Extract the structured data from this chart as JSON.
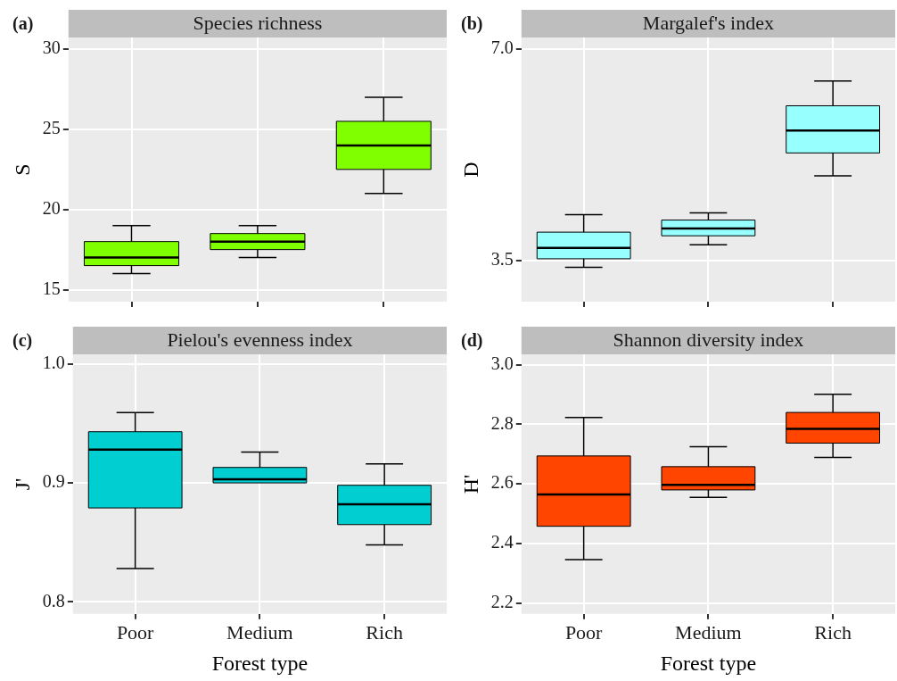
{
  "chart_data": [
    {
      "type": "box",
      "title": "Species richness",
      "ylabel": "S",
      "categories": [
        null,
        null,
        null
      ],
      "annotations": [
        "(a)"
      ],
      "grid": true,
      "tick_labels": "y",
      "ylim": [
        14.25,
        30.73
      ],
      "yticks": [
        15,
        20,
        25,
        30
      ],
      "series": [
        {
          "color": "#7fff00",
          "boxes": [
            {
              "low": 16,
              "q1": 16.5,
              "median": 17,
              "q3": 18,
              "high": 19
            },
            {
              "low": 17,
              "q1": 17.5,
              "median": 18,
              "q3": 18.5,
              "high": 19
            },
            {
              "low": 21,
              "q1": 22.5,
              "median": 24,
              "q3": 25.5,
              "high": 27
            }
          ]
        }
      ]
    },
    {
      "type": "box",
      "title": "Margalef's index",
      "ylabel": "D",
      "categories": [
        null,
        null,
        null
      ],
      "annotations": [
        "(b)"
      ],
      "grid": true,
      "tick_labels": "y",
      "ylim": [
        2.82,
        7.19
      ],
      "yticks": [
        3.5,
        {
          "value": 7,
          "label": "7.0"
        }
      ],
      "series": [
        {
          "color": "#98ffff",
          "boxes": [
            {
              "low": 3.39,
              "q1": 3.53,
              "median": 3.71,
              "q3": 3.97,
              "high": 4.26
            },
            {
              "low": 3.76,
              "q1": 3.91,
              "median": 4.03,
              "q3": 4.17,
              "high": 4.29
            },
            {
              "low": 4.9,
              "q1": 5.28,
              "median": 5.65,
              "q3": 6.06,
              "high": 6.47
            }
          ]
        }
      ]
    },
    {
      "type": "box",
      "title": "Pielou's evenness index",
      "ylabel": "J'",
      "xlabel": "Forest type",
      "categories": [
        "Poor",
        "Medium",
        "Rich"
      ],
      "annotations": [
        "(c)"
      ],
      "grid": true,
      "ylim": [
        0.79,
        1.008
      ],
      "yticks": [
        0.8,
        0.9,
        {
          "value": 1,
          "label": "1.0"
        }
      ],
      "series": [
        {
          "color": "#00ced1",
          "boxes": [
            {
              "low": 0.828,
              "q1": 0.879,
              "median": 0.928,
              "q3": 0.943,
              "high": 0.959
            },
            {
              "low": 0.9,
              "q1": 0.9,
              "median": 0.903,
              "q3": 0.913,
              "high": 0.926
            },
            {
              "low": 0.848,
              "q1": 0.865,
              "median": 0.882,
              "q3": 0.898,
              "high": 0.916
            }
          ]
        }
      ]
    },
    {
      "type": "box",
      "title": "Shannon diversity index",
      "ylabel": "H'",
      "xlabel": "Forest type",
      "categories": [
        "Poor",
        "Medium",
        "Rich"
      ],
      "annotations": [
        "(d)"
      ],
      "grid": true,
      "ylim": [
        2.164,
        3.035
      ],
      "yticks": [
        2.2,
        2.4,
        2.6,
        2.8,
        {
          "value": 3,
          "label": "3.0"
        }
      ],
      "series": [
        {
          "color": "#ff4500",
          "boxes": [
            {
              "low": 2.346,
              "q1": 2.458,
              "median": 2.565,
              "q3": 2.694,
              "high": 2.823
            },
            {
              "low": 2.555,
              "q1": 2.58,
              "median": 2.597,
              "q3": 2.658,
              "high": 2.725
            },
            {
              "low": 2.689,
              "q1": 2.737,
              "median": 2.785,
              "q3": 2.84,
              "high": 2.901
            }
          ]
        }
      ]
    }
  ]
}
